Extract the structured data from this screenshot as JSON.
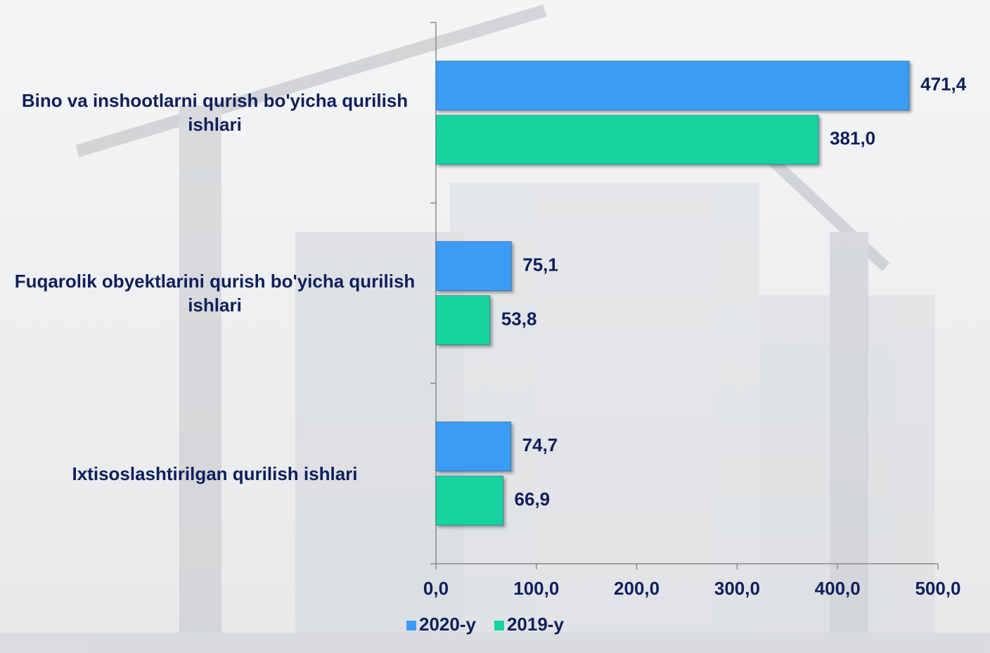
{
  "chart_data": {
    "type": "hbar",
    "categories": [
      "Bino va inshootlarni qurish bo'yicha qurilish ishlari",
      "Fuqarolik obyektlarini qurish bo'yicha qurilish ishlari",
      "Ixtisoslashtirilgan qurilish ishlari"
    ],
    "series": [
      {
        "name": "2020-y",
        "color": "#3a9cf6",
        "values": [
          471.4,
          75.1,
          74.7
        ],
        "value_labels": [
          "471,4",
          "75,1",
          "74,7"
        ]
      },
      {
        "name": "2019-y",
        "color": "#14d4a0",
        "values": [
          381.0,
          53.8,
          66.9
        ],
        "value_labels": [
          "381,0",
          "53,8",
          "66,9"
        ]
      }
    ],
    "xlim": [
      0,
      500
    ],
    "xticks": [
      {
        "value": 0,
        "label": "0,0"
      },
      {
        "value": 100,
        "label": "100,0"
      },
      {
        "value": 200,
        "label": "200,0"
      },
      {
        "value": 300,
        "label": "300,0"
      },
      {
        "value": 400,
        "label": "400,0"
      },
      {
        "value": 500,
        "label": "500,0"
      }
    ],
    "legend": "bottom"
  }
}
